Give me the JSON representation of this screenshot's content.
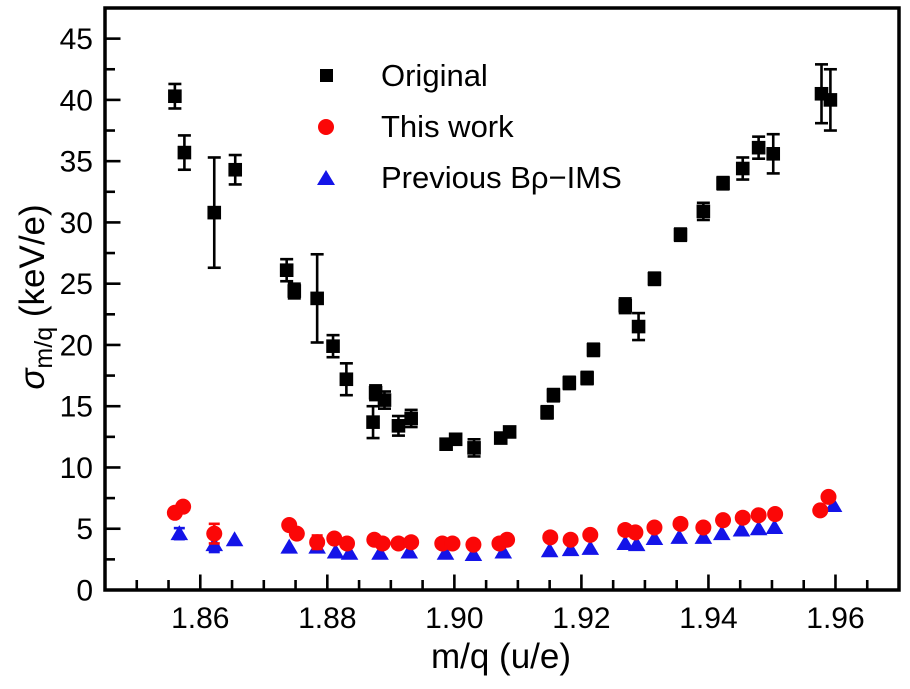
{
  "figure": {
    "ylabel_sigma": "σ",
    "ylabel_sub": "m/q",
    "ylabel_rest": " (keV/e)",
    "xlabel": "m/q (u/e)"
  },
  "chart_data": {
    "type": "scatter",
    "title": "",
    "xlabel": "m/q (u/e)",
    "ylabel": "σ_m/q (keV/e)",
    "xlim": [
      1.845,
      1.97
    ],
    "ylim": [
      0,
      47.5
    ],
    "grid": false,
    "legend_position": "upper-center",
    "x_ticks": {
      "values": [
        1.86,
        1.88,
        1.9,
        1.92,
        1.94,
        1.96
      ],
      "labels": [
        "1.86",
        "1.88",
        "1.90",
        "1.92",
        "1.94",
        "1.96"
      ],
      "minor_step": 0.005
    },
    "y_ticks": {
      "values": [
        0,
        5,
        10,
        15,
        20,
        25,
        30,
        35,
        40,
        45
      ],
      "labels": [
        "0",
        "5",
        "10",
        "15",
        "20",
        "25",
        "30",
        "35",
        "40",
        "45"
      ],
      "minor_step": 2.5
    },
    "series": [
      {
        "name": "Original",
        "marker": "square",
        "color": "#000000",
        "points": [
          [
            1.856,
            40.3,
            1.0
          ],
          [
            1.8575,
            35.7,
            1.4
          ],
          [
            1.8622,
            30.8,
            4.5
          ],
          [
            1.8655,
            34.3,
            1.2
          ],
          [
            1.8736,
            26.1,
            0.9
          ],
          [
            1.8748,
            24.4,
            0.6
          ],
          [
            1.8784,
            23.8,
            3.6
          ],
          [
            1.8809,
            19.9,
            0.9
          ],
          [
            1.883,
            17.2,
            1.3
          ],
          [
            1.8872,
            13.7,
            1.3
          ],
          [
            1.8876,
            16.1,
            0.6
          ],
          [
            1.889,
            15.5,
            0.7
          ],
          [
            1.8912,
            13.4,
            0.8
          ],
          [
            1.8932,
            14.0,
            0.7
          ],
          [
            1.8987,
            11.9,
            0.4
          ],
          [
            1.9002,
            12.3,
            0.4
          ],
          [
            1.9031,
            11.6,
            0.7
          ],
          [
            1.9073,
            12.4,
            0.4
          ],
          [
            1.9087,
            12.9,
            0.4
          ],
          [
            1.9146,
            14.5,
            0.5
          ],
          [
            1.9156,
            15.9,
            0.5
          ],
          [
            1.9181,
            16.9,
            0.5
          ],
          [
            1.9209,
            17.3,
            0.5
          ],
          [
            1.9219,
            19.6,
            0.5
          ],
          [
            1.9269,
            23.2,
            0.6
          ],
          [
            1.929,
            21.5,
            1.1
          ],
          [
            1.9315,
            25.4,
            0.5
          ],
          [
            1.9356,
            29.0,
            0.5
          ],
          [
            1.9392,
            30.9,
            0.7
          ],
          [
            1.9423,
            33.2,
            0.5
          ],
          [
            1.9454,
            34.4,
            0.9
          ],
          [
            1.9479,
            36.1,
            0.9
          ],
          [
            1.9502,
            35.6,
            1.6
          ],
          [
            1.9578,
            40.5,
            2.4
          ],
          [
            1.9592,
            40.0,
            2.5
          ]
        ]
      },
      {
        "name": "This work",
        "marker": "circle",
        "color": "#fb0707",
        "points": [
          [
            1.856,
            6.3,
            0
          ],
          [
            1.8573,
            6.8,
            0
          ],
          [
            1.8622,
            4.6,
            0.8
          ],
          [
            1.874,
            5.3,
            0
          ],
          [
            1.8752,
            4.6,
            0
          ],
          [
            1.8784,
            3.9,
            0.55
          ],
          [
            1.8811,
            4.2,
            0
          ],
          [
            1.8831,
            3.8,
            0
          ],
          [
            1.8874,
            4.1,
            0
          ],
          [
            1.8887,
            3.8,
            0
          ],
          [
            1.8912,
            3.8,
            0
          ],
          [
            1.8932,
            3.9,
            0
          ],
          [
            1.8981,
            3.8,
            0
          ],
          [
            1.8997,
            3.8,
            0
          ],
          [
            1.903,
            3.7,
            0
          ],
          [
            1.9071,
            3.8,
            0
          ],
          [
            1.9083,
            4.1,
            0
          ],
          [
            1.9151,
            4.3,
            0
          ],
          [
            1.9183,
            4.1,
            0
          ],
          [
            1.9214,
            4.5,
            0
          ],
          [
            1.9269,
            4.9,
            0
          ],
          [
            1.9285,
            4.7,
            0
          ],
          [
            1.9315,
            5.1,
            0
          ],
          [
            1.9356,
            5.4,
            0
          ],
          [
            1.9392,
            5.1,
            0
          ],
          [
            1.9423,
            5.7,
            0
          ],
          [
            1.9454,
            5.9,
            0
          ],
          [
            1.9479,
            6.1,
            0
          ],
          [
            1.9505,
            6.2,
            0
          ],
          [
            1.9576,
            6.5,
            0
          ],
          [
            1.9589,
            7.6,
            0
          ]
        ]
      },
      {
        "name": "Previous Bρ−IMS",
        "marker": "triangle",
        "color": "#1414e8",
        "points": [
          [
            1.8567,
            4.6,
            0.45
          ],
          [
            1.8622,
            3.7,
            0.6
          ],
          [
            1.8654,
            4.1,
            0
          ],
          [
            1.874,
            3.5,
            0
          ],
          [
            1.8784,
            3.5,
            0
          ],
          [
            1.8813,
            3.1,
            0
          ],
          [
            1.8835,
            3.0,
            0
          ],
          [
            1.8883,
            3.0,
            0
          ],
          [
            1.8929,
            3.1,
            0
          ],
          [
            1.8986,
            3.0,
            0
          ],
          [
            1.903,
            2.9,
            0
          ],
          [
            1.9077,
            3.1,
            0
          ],
          [
            1.915,
            3.2,
            0
          ],
          [
            1.9183,
            3.3,
            0
          ],
          [
            1.9214,
            3.4,
            0
          ],
          [
            1.9269,
            3.8,
            0
          ],
          [
            1.9287,
            3.7,
            0
          ],
          [
            1.9315,
            4.2,
            0
          ],
          [
            1.9354,
            4.3,
            0
          ],
          [
            1.9392,
            4.3,
            0
          ],
          [
            1.9421,
            4.6,
            0
          ],
          [
            1.9452,
            4.9,
            0
          ],
          [
            1.9479,
            5.0,
            0
          ],
          [
            1.9504,
            5.1,
            0
          ],
          [
            1.9597,
            6.9,
            0
          ]
        ]
      }
    ]
  }
}
